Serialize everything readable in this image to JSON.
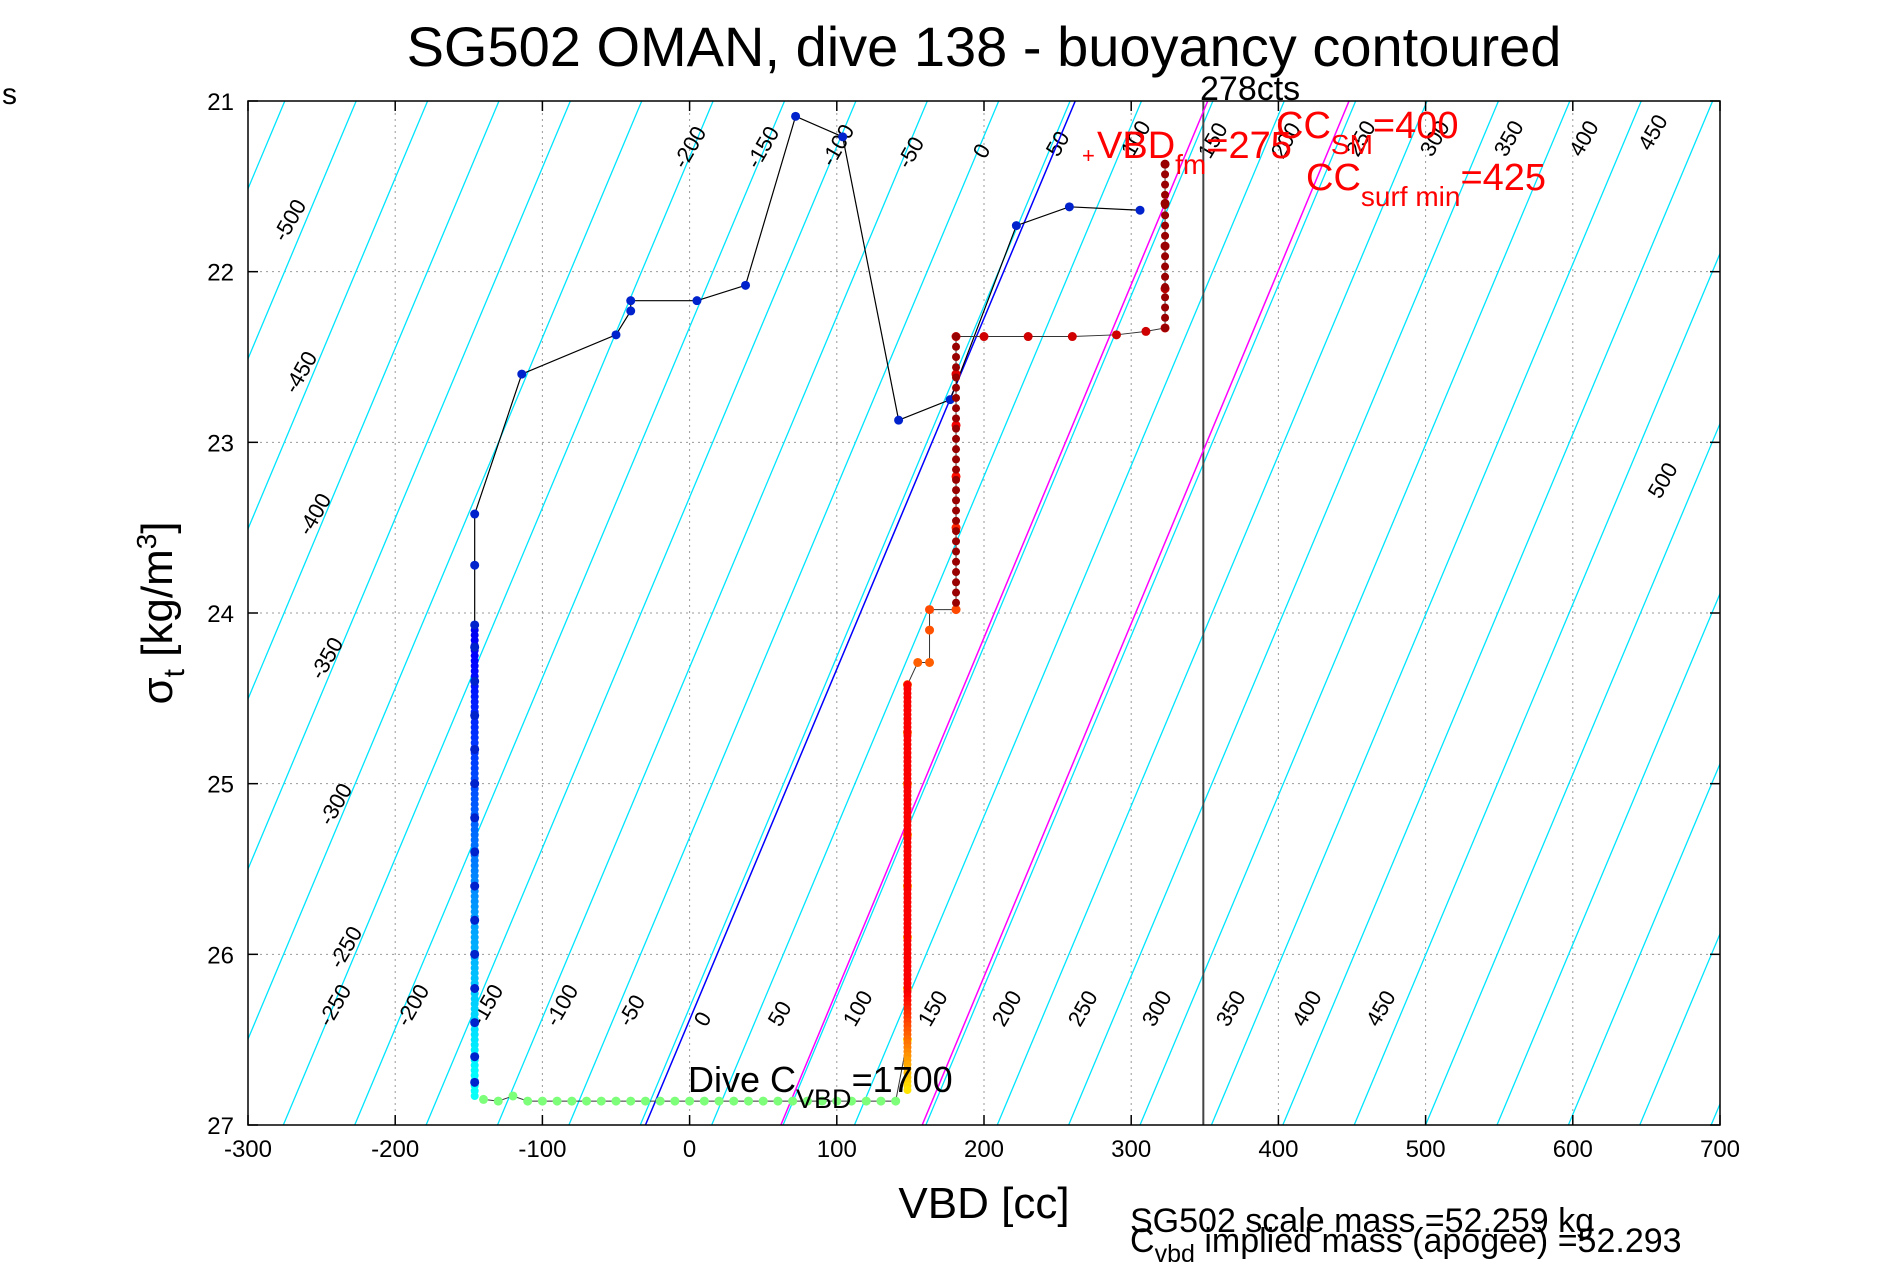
{
  "chart_data": {
    "type": "scatter",
    "title": "SG502 OMAN, dive 138 - buoyancy contoured",
    "xlabel": "VBD [cc]",
    "ylabel_main": "σ",
    "ylabel_sub": "t",
    "ylabel_unit_a": " [kg/m",
    "ylabel_unit_sup": "3",
    "ylabel_unit_b": "]",
    "corner_mark": "s",
    "xlim": [
      -300,
      700
    ],
    "ylim": [
      21,
      27
    ],
    "y_reversed": true,
    "xticks": [
      -300,
      -200,
      -100,
      0,
      100,
      200,
      300,
      400,
      500,
      600,
      700
    ],
    "yticks": [
      21,
      22,
      23,
      24,
      25,
      26,
      27
    ],
    "grid": true,
    "annotations": {
      "cts_label": "278cts",
      "vbd_fm_prefix": "VBD",
      "vbd_fm_sub": "fm",
      "vbd_fm_value": "=275",
      "cc_sm_prefix": "CC",
      "cc_sm_sub": "SM",
      "cc_sm_value": "=400",
      "cc_surf_prefix": "CC",
      "cc_surf_sub": "surf min",
      "cc_surf_value": "=425",
      "dive_prefix": "Dive C",
      "dive_sub": "VBD",
      "dive_value": "=1700",
      "scale_mass": "SG502 scale mass =52.259 kg",
      "implied_prefix": "C",
      "implied_sub": "vbd",
      "implied_value": " implied mass (apogee) =52.293"
    },
    "contour_labels_top": [
      "-500",
      "-450",
      "-400",
      "-350",
      "-300",
      "-250",
      "-200",
      "-150",
      "-100",
      "-50",
      "0",
      "50",
      "100",
      "150",
      "200",
      "250",
      "300",
      "350",
      "400",
      "450",
      "500"
    ],
    "contour_labels_bottom": [
      "-250",
      "-200",
      "-150",
      "-100",
      "-50",
      "0",
      "50",
      "100",
      "150",
      "200",
      "250",
      "300",
      "350",
      "400",
      "450"
    ],
    "reference_lines": {
      "vertical_vbd": 349,
      "blue_line": [
        [
          -30,
          27
        ],
        [
          262,
          21
        ]
      ],
      "magenta_lines": [
        [
          [
            62,
            27
          ],
          [
            352,
            21
          ]
        ],
        [
          [
            158,
            27
          ],
          [
            448,
            21
          ]
        ]
      ]
    },
    "climb_series": {
      "name": "climb",
      "points": [
        [
          -146,
          23.42
        ],
        [
          -146,
          23.72
        ],
        [
          -146,
          24.07
        ],
        [
          -146,
          24.2
        ],
        [
          -146,
          24.4
        ],
        [
          -146,
          24.6
        ],
        [
          -146,
          24.8
        ],
        [
          -146,
          25.0
        ],
        [
          -146,
          25.2
        ],
        [
          -146,
          25.4
        ],
        [
          -146,
          25.6
        ],
        [
          -146,
          25.8
        ],
        [
          -146,
          26.0
        ],
        [
          -146,
          26.2
        ],
        [
          -146,
          26.4
        ],
        [
          -146,
          26.6
        ],
        [
          -146,
          26.75
        ],
        [
          -114,
          22.6
        ],
        [
          -50,
          22.37
        ],
        [
          -40,
          22.23
        ],
        [
          -40,
          22.17
        ],
        [
          5,
          22.17
        ],
        [
          38,
          22.08
        ],
        [
          72,
          21.09
        ],
        [
          104,
          21.21
        ],
        [
          142,
          22.87
        ],
        [
          177,
          22.75
        ],
        [
          222,
          21.73
        ],
        [
          258,
          21.62
        ],
        [
          306,
          21.64
        ]
      ]
    },
    "dive_series": {
      "name": "dive",
      "points": [
        [
          -140,
          26.85
        ],
        [
          -130,
          26.86
        ],
        [
          -120,
          26.83
        ],
        [
          -110,
          26.86
        ],
        [
          -100,
          26.86
        ],
        [
          -90,
          26.86
        ],
        [
          -80,
          26.86
        ],
        [
          -70,
          26.86
        ],
        [
          -60,
          26.86
        ],
        [
          -50,
          26.86
        ],
        [
          -40,
          26.86
        ],
        [
          -30,
          26.86
        ],
        [
          -20,
          26.86
        ],
        [
          -10,
          26.86
        ],
        [
          0,
          26.86
        ],
        [
          10,
          26.86
        ],
        [
          20,
          26.86
        ],
        [
          30,
          26.86
        ],
        [
          40,
          26.86
        ],
        [
          50,
          26.86
        ],
        [
          60,
          26.86
        ],
        [
          70,
          26.86
        ],
        [
          80,
          26.86
        ],
        [
          90,
          26.86
        ],
        [
          100,
          26.86
        ],
        [
          110,
          26.86
        ],
        [
          120,
          26.86
        ],
        [
          130,
          26.86
        ],
        [
          140,
          26.86
        ],
        [
          148,
          26.5
        ],
        [
          148,
          26.2
        ],
        [
          148,
          25.9
        ],
        [
          148,
          25.6
        ],
        [
          148,
          25.3
        ],
        [
          148,
          25.0
        ],
        [
          148,
          24.7
        ],
        [
          148,
          24.42
        ],
        [
          155,
          24.29
        ],
        [
          163,
          24.29
        ],
        [
          163,
          24.1
        ],
        [
          163,
          23.98
        ],
        [
          181,
          23.98
        ],
        [
          181,
          23.5
        ],
        [
          181,
          23.2
        ],
        [
          181,
          22.9
        ],
        [
          181,
          22.6
        ],
        [
          181,
          22.38
        ],
        [
          200,
          22.38
        ],
        [
          230,
          22.38
        ],
        [
          260,
          22.38
        ],
        [
          290,
          22.37
        ],
        [
          310,
          22.35
        ],
        [
          323,
          22.33
        ],
        [
          323,
          22.1
        ],
        [
          323,
          21.85
        ],
        [
          323,
          21.6
        ],
        [
          323,
          21.37
        ]
      ]
    }
  }
}
